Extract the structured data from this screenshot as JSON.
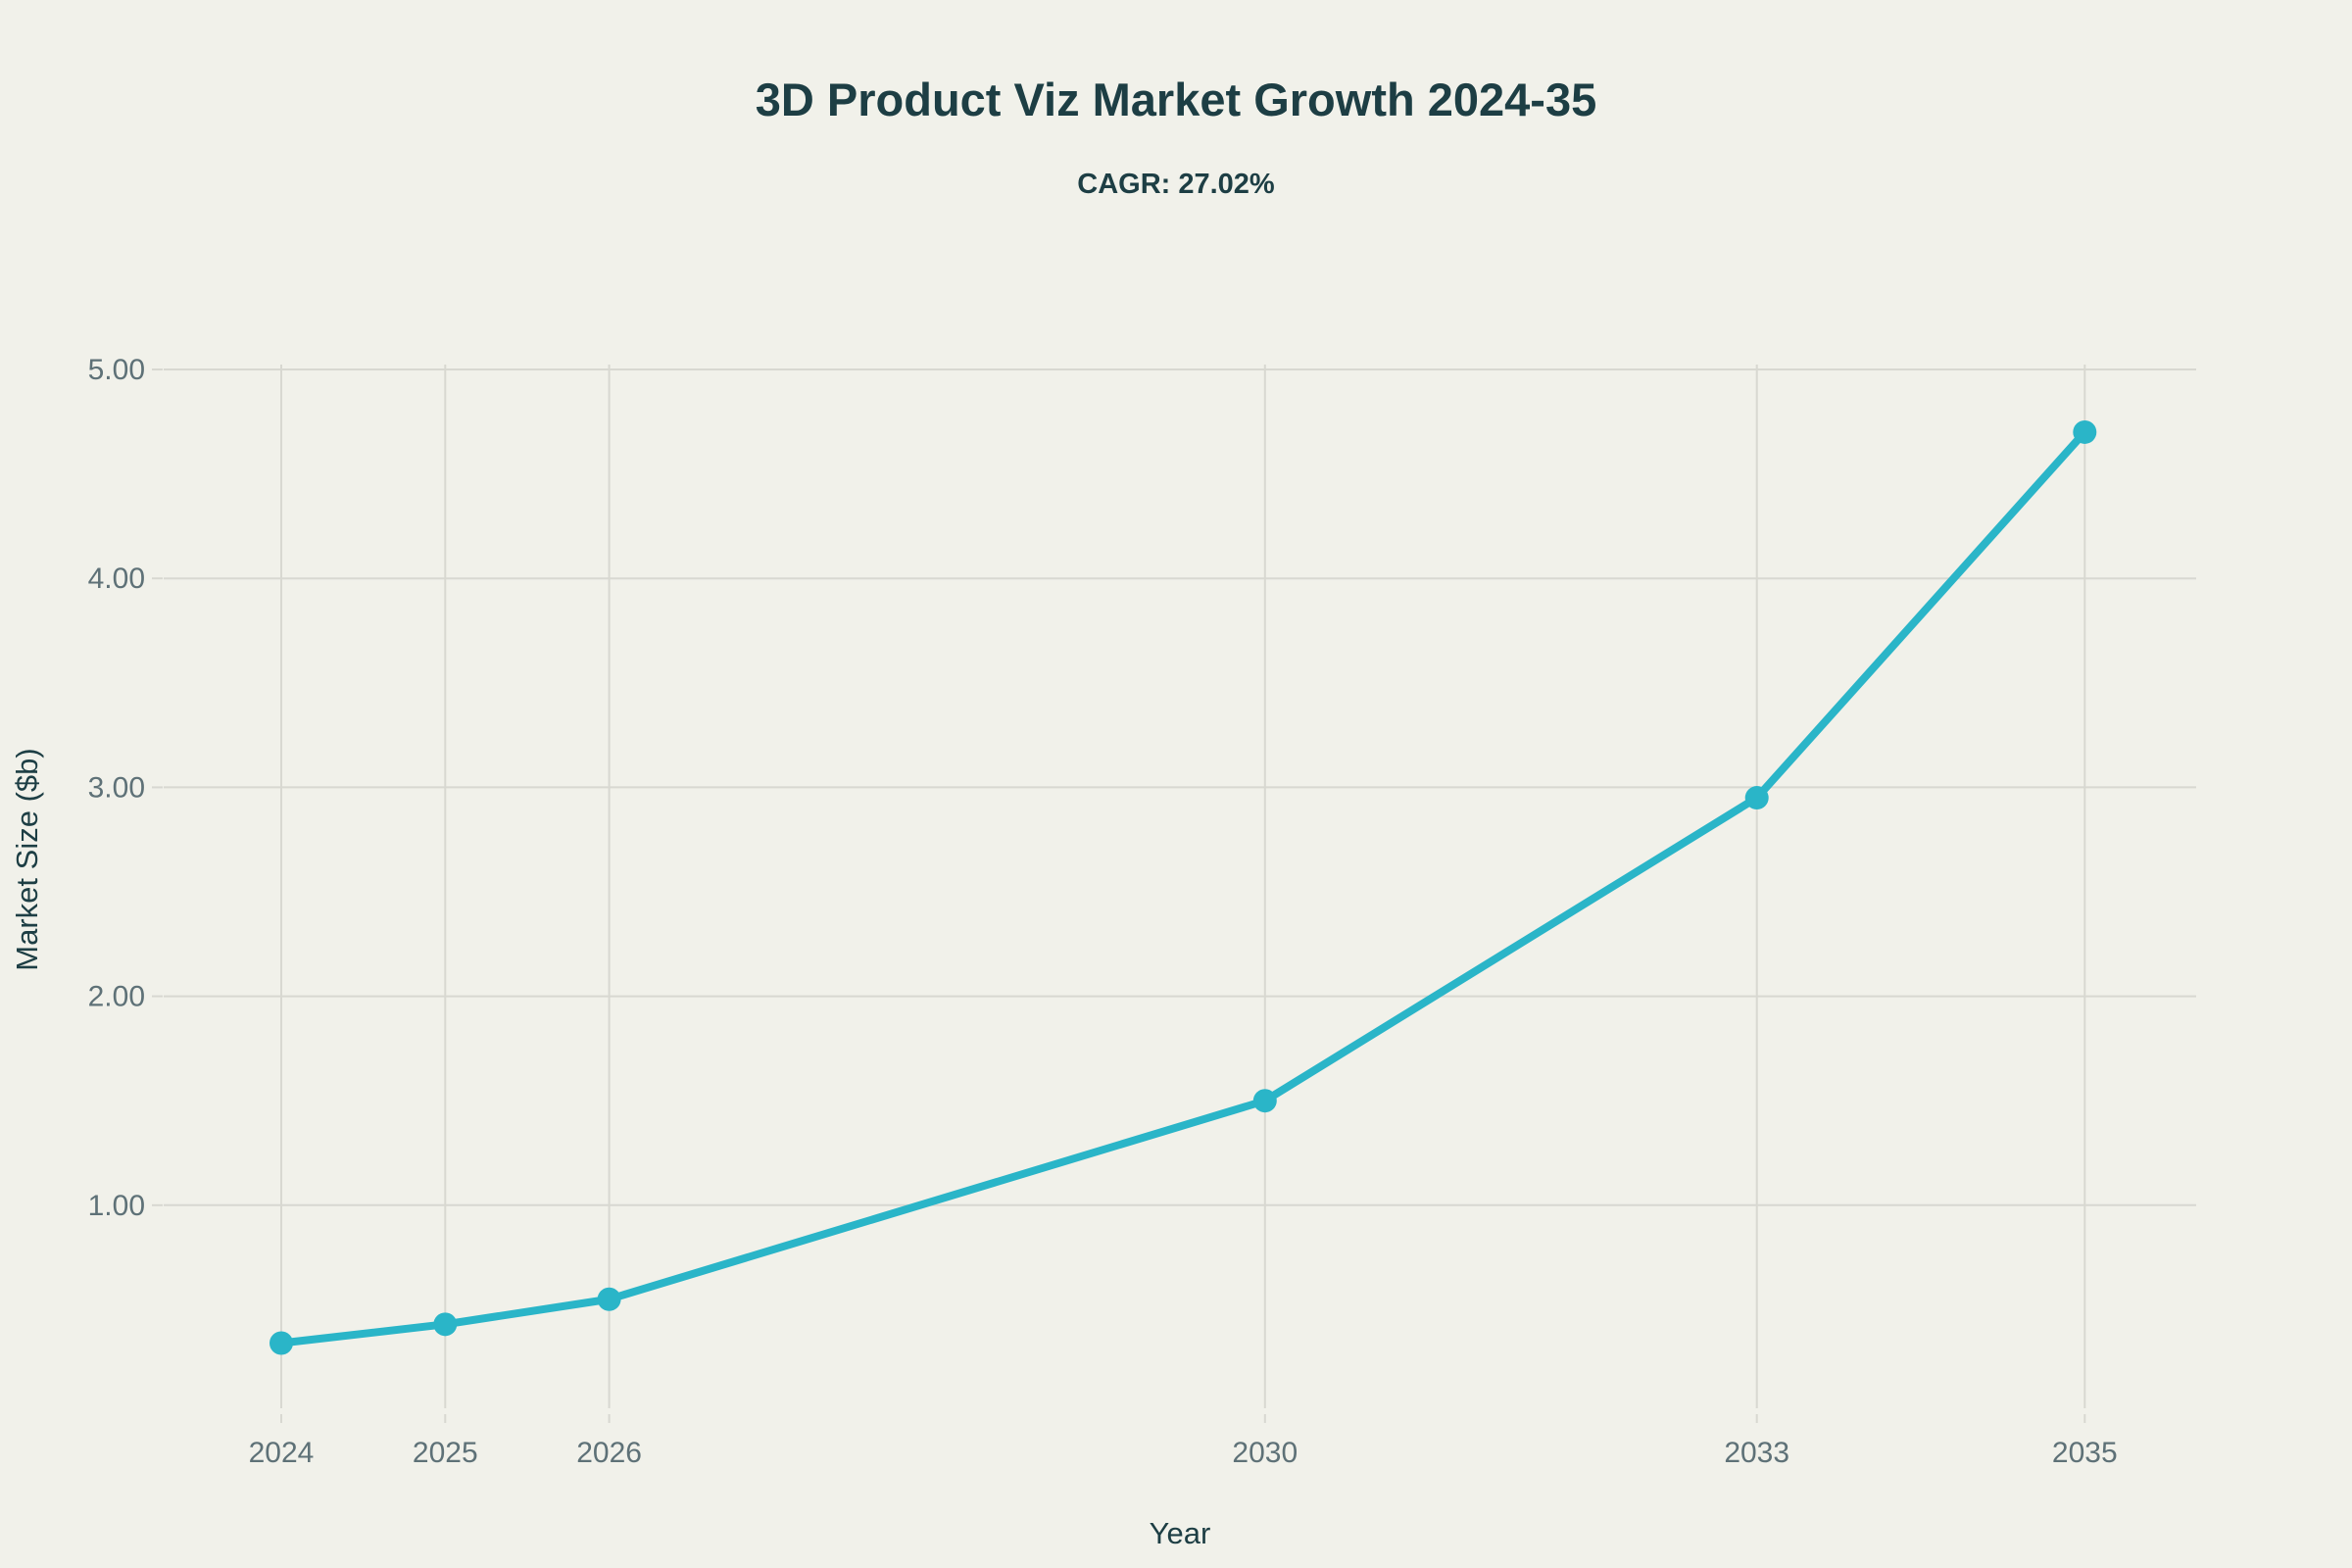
{
  "page": {
    "background_color": "#f1f1ea"
  },
  "header": {
    "title": "3D Product Viz Market Growth 2024-35",
    "subtitle": "CAGR: 27.02%"
  },
  "chart_data": {
    "type": "line",
    "title": "3D Product Viz Market Growth 2024-35",
    "subtitle": "CAGR: 27.02%",
    "xlabel": "Year",
    "ylabel": "Market Size ($b)",
    "x": [
      2024,
      2025,
      2026,
      2030,
      2033,
      2035
    ],
    "x_tick_labels": [
      "2024",
      "2025",
      "2026",
      "2030",
      "2033",
      "2035"
    ],
    "series": [
      {
        "name": "Market Size ($b)",
        "values": [
          0.34,
          0.43,
          0.55,
          1.5,
          2.95,
          4.7
        ]
      }
    ],
    "cagr_percent": 27.02,
    "y_ticks": [
      1,
      2,
      3,
      4,
      5
    ],
    "y_tick_labels": [
      "1.00",
      "2.00",
      "3.00",
      "4.00",
      "5.00"
    ],
    "xlim": [
      2023.3,
      2035.7
    ],
    "ylim": [
      0,
      5.02
    ],
    "grid": true,
    "legend": "none",
    "colors": {
      "line": "#2ab5c8",
      "marker": "#2ab5c8",
      "grid": "#d8d8d1",
      "tick_label": "#5e7177",
      "text": "#1d3e44",
      "background": "#f1f1ea"
    }
  }
}
